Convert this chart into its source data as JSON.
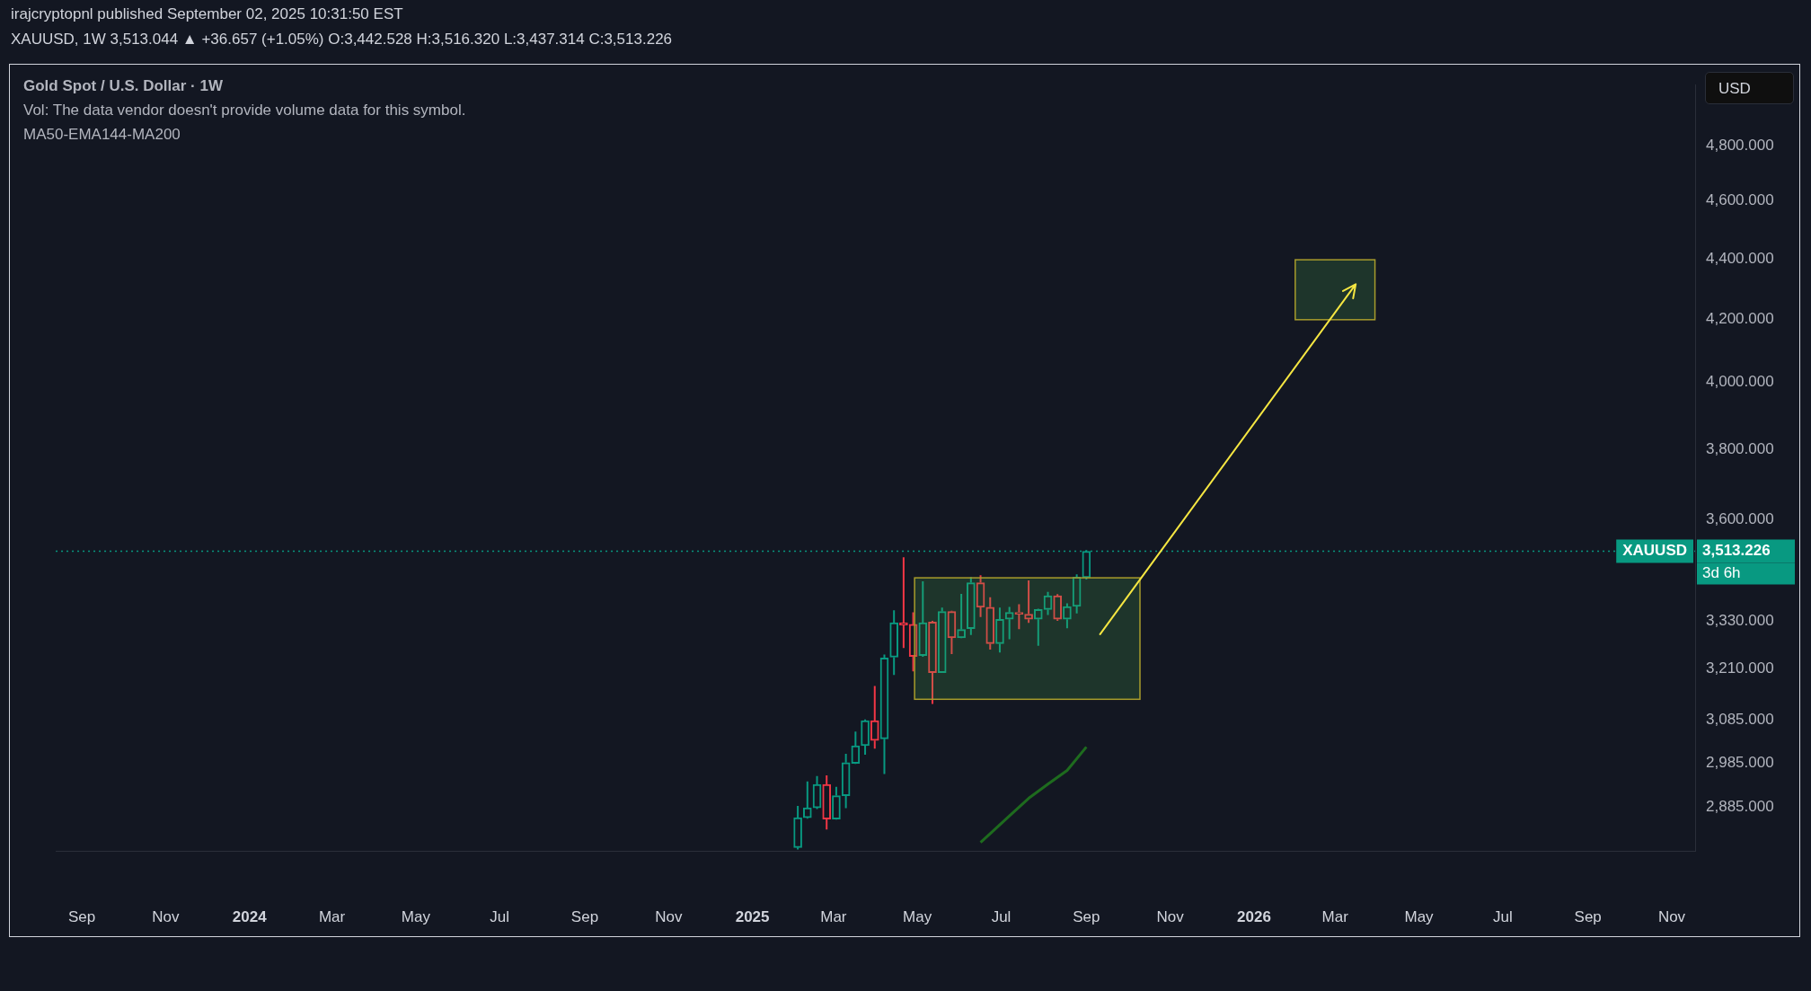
{
  "chart_data": {
    "type": "candlestick",
    "title": "Gold Spot / U.S. Dollar · 1W",
    "annotations": [
      "irajcryptopnl published September 02, 2025 10:31:50 EST",
      "XAUUSD, 1W 3,513.044 ▲ +36.657 (+1.05%) O:3,442.528 H:3,516.320 L:3,437.314 C:3,513.226",
      "Vol: The data vendor doesn't provide volume data for this symbol.",
      "MA50-EMA144-MA200",
      "USD",
      "3,513.226",
      "3d 6h"
    ],
    "x": [
      "2025-02-03",
      "2025-02-10",
      "2025-02-17",
      "2025-02-24",
      "2025-03-03",
      "2025-03-10",
      "2025-03-17",
      "2025-03-24",
      "2025-03-31",
      "2025-04-07",
      "2025-04-14",
      "2025-04-21",
      "2025-04-28",
      "2025-05-05",
      "2025-05-12",
      "2025-05-19",
      "2025-05-26",
      "2025-06-02",
      "2025-06-09",
      "2025-06-16",
      "2025-06-23",
      "2025-06-30",
      "2025-07-07",
      "2025-07-14",
      "2025-07-21",
      "2025-07-28",
      "2025-08-04",
      "2025-08-11",
      "2025-08-18",
      "2025-08-25",
      "2025-09-01"
    ],
    "ohlc": [
      [
        2797,
        2888,
        2793,
        2862
      ],
      [
        2862,
        2943,
        2860,
        2884
      ],
      [
        2884,
        2955,
        2881,
        2936
      ],
      [
        2936,
        2957,
        2836,
        2859
      ],
      [
        2859,
        2931,
        2858,
        2911
      ],
      [
        2911,
        3006,
        2883,
        2986
      ],
      [
        2984,
        3058,
        2983,
        3025
      ],
      [
        3025,
        3087,
        3004,
        3084
      ],
      [
        3084,
        3167,
        3018,
        3037
      ],
      [
        3041,
        3245,
        2960,
        3236
      ],
      [
        3238,
        3357,
        3194,
        3325
      ],
      [
        3325,
        3497,
        3261,
        3319
      ],
      [
        3321,
        3352,
        3203,
        3240
      ],
      [
        3242,
        3433,
        3239,
        3325
      ],
      [
        3327,
        3330,
        3124,
        3200
      ],
      [
        3200,
        3364,
        3199,
        3354
      ],
      [
        3354,
        3356,
        3246,
        3287
      ],
      [
        3287,
        3400,
        3286,
        3308
      ],
      [
        3310,
        3444,
        3294,
        3429
      ],
      [
        3429,
        3449,
        3340,
        3365
      ],
      [
        3365,
        3391,
        3257,
        3272
      ],
      [
        3272,
        3364,
        3250,
        3334
      ],
      [
        3334,
        3366,
        3283,
        3352
      ],
      [
        3352,
        3373,
        3309,
        3347
      ],
      [
        3347,
        3435,
        3325,
        3334
      ],
      [
        3334,
        3361,
        3267,
        3359
      ],
      [
        3359,
        3405,
        3345,
        3395
      ],
      [
        3395,
        3399,
        3330,
        3334
      ],
      [
        3334,
        3375,
        3311,
        3367
      ],
      [
        3367,
        3451,
        3349,
        3444
      ],
      [
        3442.528,
        3516.32,
        3437.314,
        3513.226
      ]
    ],
    "colors": [
      "#089981",
      "#089981",
      "#089981",
      "#f23645",
      "#089981",
      "#089981",
      "#089981",
      "#089981",
      "#f23645",
      "#089981",
      "#089981",
      "#f23645",
      "#f23645",
      "#089981",
      "#f23645",
      "#089981",
      "#f23645",
      "#089981",
      "#089981",
      "#f23645",
      "#f23645",
      "#089981",
      "#089981",
      "#f23645",
      "#f23645",
      "#089981",
      "#089981",
      "#f23645",
      "#089981",
      "#089981",
      "#089981"
    ],
    "series": [
      {
        "type": "line",
        "x": [
          "2025-06-16",
          "2025-06-23",
          "2025-07-07",
          "2025-07-21",
          "2025-08-04",
          "2025-08-18",
          "2025-09-01"
        ],
        "values": [
          2808,
          2827,
          2866,
          2905,
          2937,
          2968,
          3022
        ],
        "color": "#1e6b1e"
      }
    ],
    "log": "y",
    "xlim": [
      "2023-08-13",
      "2026-11-18"
    ],
    "xticks": [
      {
        "value": "2023-09-01",
        "label": "Sep"
      },
      {
        "value": "2023-11-01",
        "label": "Nov"
      },
      {
        "value": "2024-01-01",
        "label": "2024"
      },
      {
        "value": "2024-03-01",
        "label": "Mar"
      },
      {
        "value": "2024-05-01",
        "label": "May"
      },
      {
        "value": "2024-07-01",
        "label": "Jul"
      },
      {
        "value": "2024-09-01",
        "label": "Sep"
      },
      {
        "value": "2024-11-01",
        "label": "Nov"
      },
      {
        "value": "2025-01-01",
        "label": "2025"
      },
      {
        "value": "2025-03-01",
        "label": "Mar"
      },
      {
        "value": "2025-05-01",
        "label": "May"
      },
      {
        "value": "2025-07-01",
        "label": "Jul"
      },
      {
        "value": "2025-09-01",
        "label": "Sep"
      },
      {
        "value": "2025-11-01",
        "label": "Nov"
      },
      {
        "value": "2026-01-01",
        "label": "2026"
      },
      {
        "value": "2026-03-01",
        "label": "Mar"
      },
      {
        "value": "2026-05-01",
        "label": "May"
      },
      {
        "value": "2026-07-01",
        "label": "Jul"
      },
      {
        "value": "2026-09-01",
        "label": "Sep"
      },
      {
        "value": "2026-11-01",
        "label": "Nov"
      }
    ],
    "ylim": [
      2790,
      5030
    ],
    "yticks": [
      {
        "value": 2885,
        "label": "2,885.000"
      },
      {
        "value": 2985,
        "label": "2,985.000"
      },
      {
        "value": 3085,
        "label": "3,085.000"
      },
      {
        "value": 3210,
        "label": "3,210.000"
      },
      {
        "value": 3330,
        "label": "3,330.000"
      },
      {
        "value": 3600,
        "label": "3,600.000"
      },
      {
        "value": 3800,
        "label": "3,800.000"
      },
      {
        "value": 4000,
        "label": "4,000.000"
      },
      {
        "value": 4200,
        "label": "4,200.000"
      },
      {
        "value": 4400,
        "label": "4,400.000"
      },
      {
        "value": 4600,
        "label": "4,600.000"
      },
      {
        "value": 4800,
        "label": "4,800.000"
      }
    ],
    "ref_lines": [
      {
        "axis": "y",
        "value": 3513.226,
        "label": "XAUUSD",
        "color": "#089981",
        "line_style": "dotted"
      }
    ]
  }
}
